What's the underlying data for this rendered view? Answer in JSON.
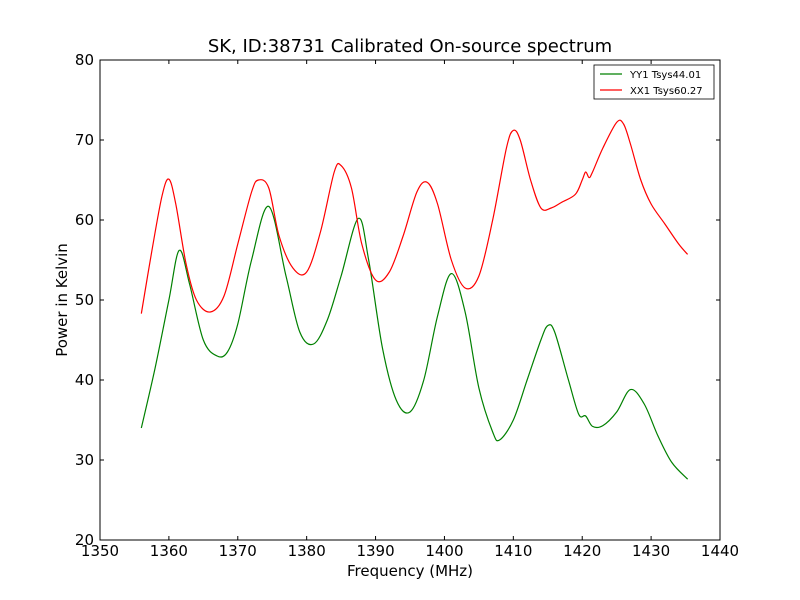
{
  "chart_data": {
    "type": "line",
    "title": "SK, ID:38731 Calibrated On-source spectrum",
    "xlabel": "Frequency (MHz)",
    "ylabel": "Power in Kelvin",
    "xlim": [
      1350,
      1440
    ],
    "ylim": [
      20,
      80
    ],
    "xticks": [
      1350,
      1360,
      1370,
      1380,
      1390,
      1400,
      1410,
      1420,
      1430,
      1440
    ],
    "yticks": [
      20,
      30,
      40,
      50,
      60,
      70,
      80
    ],
    "grid": false,
    "legend_position": "top-right",
    "series": [
      {
        "name": "YY1 Tsys44.01",
        "color": "#008000",
        "x": [
          1356,
          1358,
          1360,
          1361.5,
          1363,
          1365,
          1367,
          1368.5,
          1370,
          1372,
          1374.5,
          1377,
          1379,
          1381,
          1383,
          1385,
          1387.5,
          1389,
          1391,
          1393,
          1395,
          1397,
          1399,
          1401,
          1403,
          1405,
          1407,
          1408,
          1410,
          1412,
          1414,
          1415,
          1416,
          1418,
          1419.5,
          1420.5,
          1421.5,
          1423,
          1425,
          1427,
          1429,
          1431,
          1433,
          1435.3
        ],
        "y": [
          34,
          41.5,
          50,
          56.2,
          52,
          45,
          43,
          43.5,
          47,
          55,
          61.7,
          53,
          46,
          44.5,
          47.5,
          53,
          60.2,
          55,
          44,
          37.5,
          36,
          40,
          48,
          53.3,
          48.5,
          39,
          33.5,
          32.5,
          35,
          40,
          45,
          46.8,
          46,
          40,
          35.7,
          35.5,
          34.2,
          34.3,
          36,
          38.8,
          37,
          33,
          29.7,
          27.6
        ]
      },
      {
        "name": "XX1 Tsys60.27",
        "color": "#ff0000",
        "x": [
          1356,
          1357.5,
          1359,
          1360,
          1361,
          1362.5,
          1364,
          1366,
          1368,
          1370,
          1372,
          1373,
          1374.5,
          1376,
          1378,
          1380,
          1382,
          1384,
          1385,
          1386.5,
          1388,
          1390,
          1392,
          1394,
          1396,
          1397.5,
          1399,
          1401,
          1403,
          1405,
          1407,
          1409,
          1410,
          1411,
          1412.5,
          1414,
          1415.5,
          1417,
          1419,
          1420,
          1420.5,
          1421,
          1421.5,
          1423,
          1425,
          1426,
          1427,
          1428.5,
          1430,
          1432,
          1434,
          1435.3
        ],
        "y": [
          48.3,
          56,
          63,
          65.1,
          62,
          54.5,
          50,
          48.5,
          50.5,
          57,
          63.5,
          65,
          64,
          58,
          54,
          53.5,
          58.5,
          66,
          66.8,
          64,
          57,
          52.5,
          53.5,
          58,
          63.5,
          64.7,
          62,
          55,
          51.5,
          53,
          60,
          69,
          71.2,
          70,
          65,
          61.5,
          61.5,
          62.2,
          63.2,
          65,
          66,
          65.3,
          66,
          69,
          72.2,
          72,
          69.5,
          65,
          62,
          59.5,
          57,
          55.7
        ]
      }
    ]
  }
}
